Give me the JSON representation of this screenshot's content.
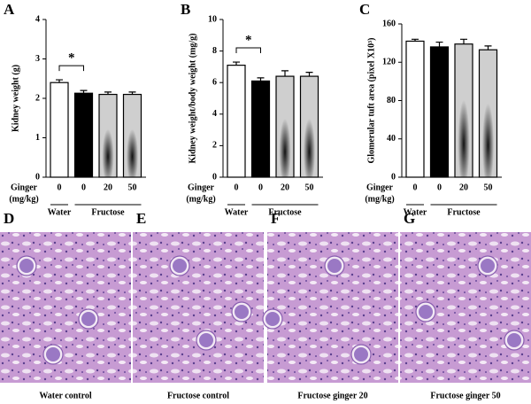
{
  "chart_data": [
    {
      "type": "bar",
      "panel": "A",
      "ylabel": "Kidney weight (g)",
      "ylim": [
        0,
        4
      ],
      "yticks": [
        0,
        1,
        2,
        3,
        4
      ],
      "categories": [
        "0",
        "0",
        "20",
        "50"
      ],
      "values": [
        2.4,
        2.13,
        2.1,
        2.1
      ],
      "errors": [
        0.07,
        0.07,
        0.06,
        0.06
      ],
      "colors": [
        "#ffffff",
        "#000000",
        "#cfcfcf",
        "#cfcfcf"
      ],
      "xlabel": [
        "Ginger",
        "(mg/kg)"
      ],
      "groups": [
        "Water",
        "Fructose"
      ],
      "annotation": "*"
    },
    {
      "type": "bar",
      "panel": "B",
      "ylabel": "Kidney weight/body weight (mg/g)",
      "ylim": [
        0,
        10
      ],
      "yticks": [
        0,
        2,
        4,
        6,
        8,
        10
      ],
      "categories": [
        "0",
        "0",
        "20",
        "50"
      ],
      "values": [
        7.1,
        6.1,
        6.4,
        6.4
      ],
      "errors": [
        0.2,
        0.2,
        0.35,
        0.25
      ],
      "colors": [
        "#ffffff",
        "#000000",
        "#cfcfcf",
        "#cfcfcf"
      ],
      "xlabel": [
        "Ginger",
        "(mg/kg)"
      ],
      "groups": [
        "Water",
        "Fructose"
      ],
      "annotation": "*"
    },
    {
      "type": "bar",
      "panel": "C",
      "ylabel": "Glomerular tuft area (pixel X10³)",
      "ylim": [
        0,
        160
      ],
      "yticks": [
        0,
        40,
        80,
        120,
        160
      ],
      "categories": [
        "0",
        "0",
        "20",
        "50"
      ],
      "values": [
        142,
        136,
        139,
        133
      ],
      "errors": [
        2,
        5,
        5,
        4
      ],
      "colors": [
        "#ffffff",
        "#000000",
        "#cfcfcf",
        "#cfcfcf"
      ],
      "xlabel": [
        "Ginger",
        "(mg/kg)"
      ],
      "groups": [
        "Water",
        "Fructose"
      ]
    }
  ],
  "panels": [
    {
      "letter": "D",
      "caption": "Water control"
    },
    {
      "letter": "E",
      "caption": "Fructose  control"
    },
    {
      "letter": "F",
      "caption": "Fructose ginger 20"
    },
    {
      "letter": "G",
      "caption": "Fructose ginger 50"
    }
  ]
}
